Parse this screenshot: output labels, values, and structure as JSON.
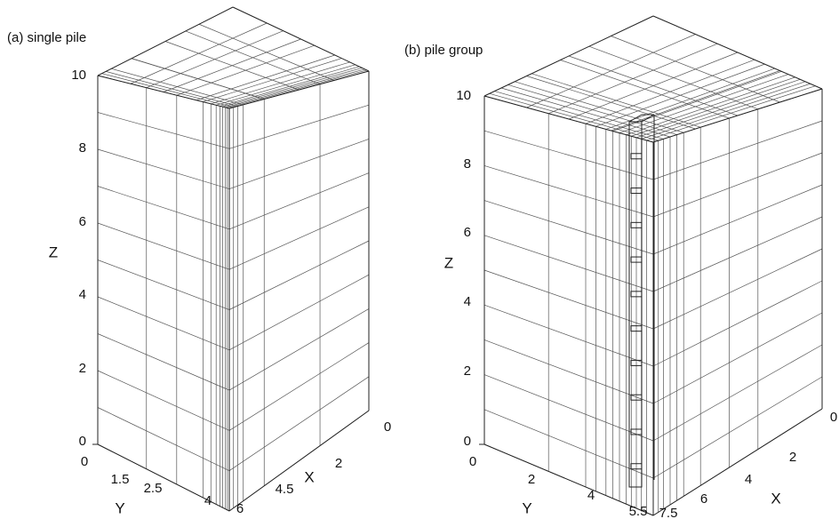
{
  "panels": [
    {
      "title": "(a) single pile",
      "z_label": "Z",
      "y_label": "Y",
      "x_label": "X",
      "z_ticks": [
        "0",
        "2",
        "4",
        "6",
        "8",
        "10"
      ],
      "y_ticks": [
        "0",
        "1.5",
        "2.5",
        "4"
      ],
      "x_ticks": [
        "6",
        "4.5",
        "2",
        "0"
      ]
    },
    {
      "title": "(b) pile group",
      "z_label": "Z",
      "y_label": "Y",
      "x_label": "X",
      "z_ticks": [
        "0",
        "2",
        "4",
        "6",
        "8",
        "10"
      ],
      "y_ticks": [
        "0",
        "2",
        "4",
        "5.5"
      ],
      "x_ticks": [
        "7.5",
        "6",
        "4",
        "2",
        "0"
      ]
    }
  ]
}
